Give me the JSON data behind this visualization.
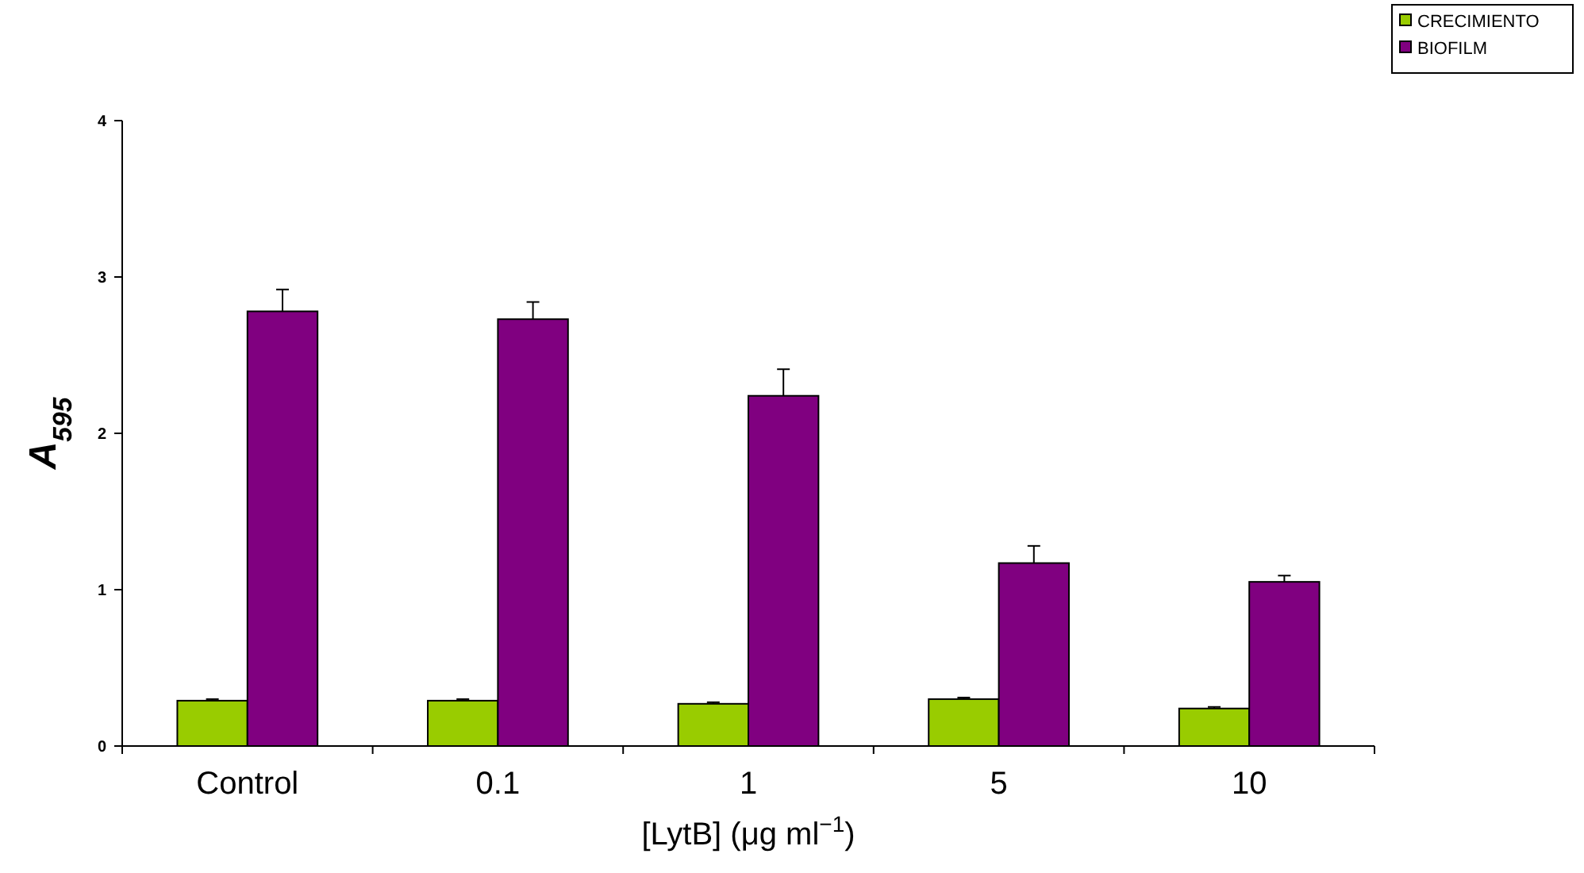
{
  "chart_data": {
    "type": "bar",
    "xlabel": "[LytB] (μg ml$^{−1}$)",
    "ylabel": "A$_{595}$",
    "categories": [
      "Control",
      "0.1",
      "1",
      "5",
      "10"
    ],
    "series": [
      {
        "name": "CRECIMIENTO",
        "color": "#99cc00",
        "values": [
          0.29,
          0.29,
          0.27,
          0.3,
          0.24
        ],
        "errors": [
          0.01,
          0.01,
          0.01,
          0.01,
          0.01
        ]
      },
      {
        "name": "BIOFILM",
        "color": "#800080",
        "values": [
          2.78,
          2.73,
          2.24,
          1.17,
          1.05
        ],
        "errors": [
          0.14,
          0.11,
          0.17,
          0.11,
          0.04
        ]
      }
    ],
    "ylim": [
      0,
      4
    ],
    "yticks": [
      0,
      1,
      2,
      3,
      4
    ],
    "legend": "top right",
    "grid": false
  }
}
